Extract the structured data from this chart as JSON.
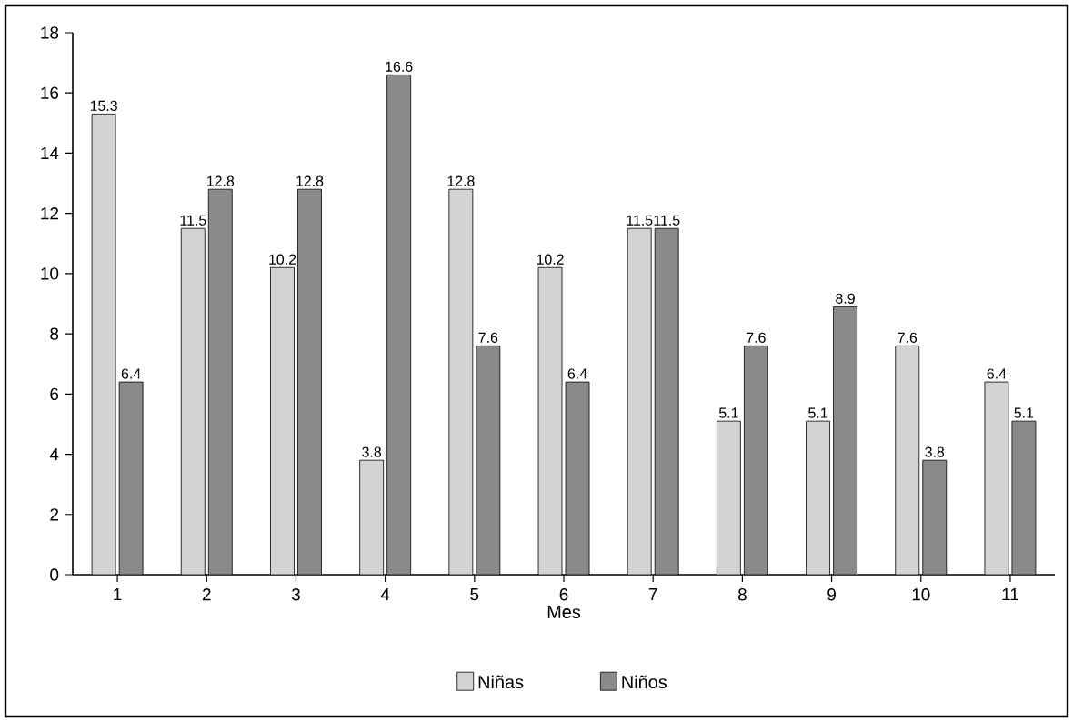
{
  "chart_data": {
    "type": "bar",
    "xlabel": "Mes",
    "categories": [
      "1",
      "2",
      "3",
      "4",
      "5",
      "6",
      "7",
      "8",
      "9",
      "10",
      "11"
    ],
    "series": [
      {
        "name": "Niñas",
        "color": "#d3d3d3",
        "values": [
          15.3,
          11.5,
          10.2,
          3.8,
          12.8,
          10.2,
          11.5,
          5.1,
          5.1,
          7.6,
          6.4
        ]
      },
      {
        "name": "Niños",
        "color": "#8a8a8a",
        "values": [
          6.4,
          12.8,
          12.8,
          16.6,
          7.6,
          6.4,
          11.5,
          7.6,
          8.9,
          3.8,
          5.1
        ]
      }
    ],
    "ylim": [
      0,
      18
    ],
    "yticks": [
      0,
      2,
      4,
      6,
      8,
      10,
      12,
      14,
      16,
      18
    ],
    "data_labels": true,
    "legend": "bottom",
    "grid": false
  }
}
